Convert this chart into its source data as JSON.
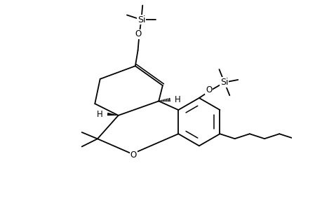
{
  "bg_color": "#ffffff",
  "bond_color": "#000000",
  "bond_lw": 1.3,
  "font_size": 8.5,
  "figsize": [
    4.6,
    3.0
  ],
  "dpi": 100,
  "xlim": [
    -1.0,
    9.0
  ],
  "ylim": [
    -0.5,
    7.5
  ]
}
